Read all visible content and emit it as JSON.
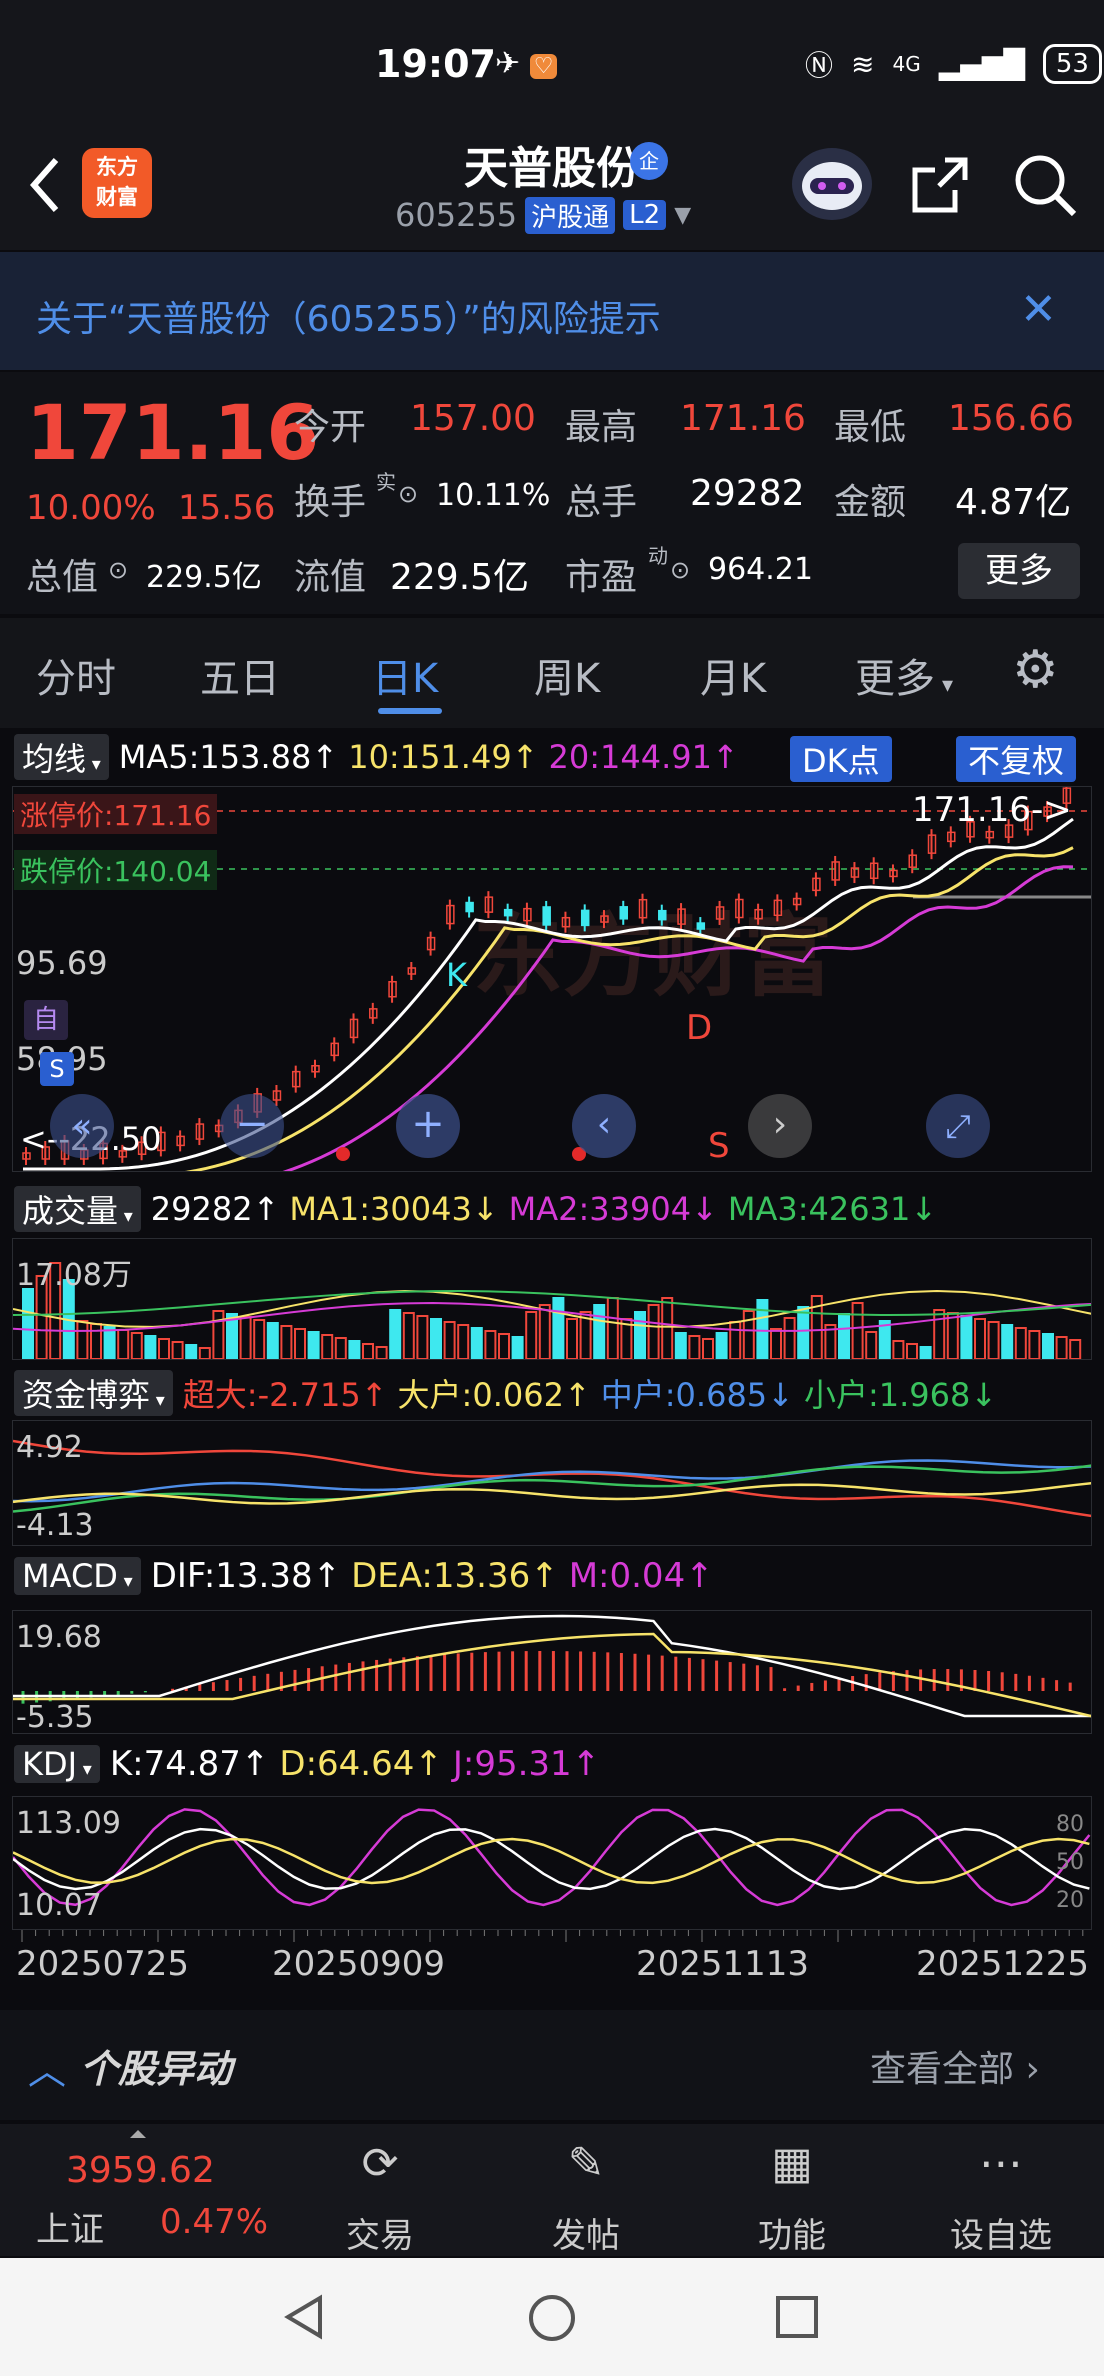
{
  "status_bar": {
    "time": "19:07",
    "battery": "53",
    "network": "4G"
  },
  "header": {
    "logo_line1": "东方",
    "logo_line2": "财富",
    "stock_name": "天普股份",
    "qiye_badge": "企",
    "stock_code": "605255",
    "tag_hgt": "沪股通",
    "tag_l2": "L2"
  },
  "risk_banner": {
    "text": "关于“天普股份（605255）”的风险提示"
  },
  "quote": {
    "price": "171.16",
    "change_pct": "10.00%",
    "change_amt": "15.56",
    "open_label": "今开",
    "open": "157.00",
    "high_label": "最高",
    "high": "171.16",
    "low_label": "最低",
    "low": "156.66",
    "turnover_label": "换手",
    "turnover_sup": "实",
    "turnover": "10.11%",
    "volume_label": "总手",
    "volume": "29282",
    "amount_label": "金额",
    "amount": "4.87亿",
    "mcap_label": "总值",
    "mcap": "229.5亿",
    "float_label": "流值",
    "float": "229.5亿",
    "pe_label": "市盈",
    "pe_sup": "动",
    "pe": "964.21",
    "more": "更多"
  },
  "tabs": [
    "分时",
    "五日",
    "日K",
    "周K",
    "月K",
    "更多"
  ],
  "active_tab": 2,
  "kline": {
    "ma_selector": "均线",
    "ma5": "MA5:153.88↑",
    "ma10": "10:151.49↑",
    "ma20": "20:144.91↑",
    "dk_btn": "DK点",
    "fq_btn": "不复权",
    "limit_up": "涨停价:171.16",
    "limit_down": "跌停价:140.04",
    "axis_top": "171.16",
    "axis_mid": "95.69",
    "axis_low": "58.95",
    "price_arrow": "171.16->",
    "low_mark": "<--22.50",
    "marker_k": "K",
    "marker_d": "D",
    "marker_s": "S",
    "marker_zi": "自",
    "marker_s_tag": "S"
  },
  "volume": {
    "selector": "成交量",
    "value": "29282↑",
    "ma1": "MA1:30043↓",
    "ma2": "MA2:33904↓",
    "ma3": "MA3:42631↓",
    "axis_top": "17.08万"
  },
  "funds": {
    "selector": "资金博弈",
    "super": "超大:-2.715↑",
    "large": "大户:0.062↑",
    "mid": "中户:0.685↓",
    "small": "小户:1.968↓",
    "axis_top": "4.92",
    "axis_low": "-4.13"
  },
  "macd": {
    "selector": "MACD",
    "dif": "DIF:13.38↑",
    "dea": "DEA:13.36↑",
    "m": "M:0.04↑",
    "axis_top": "19.68",
    "axis_low": "-5.35"
  },
  "kdj": {
    "selector": "KDJ",
    "k": "K:74.87↑",
    "d": "D:64.64↑",
    "j": "J:95.31↑",
    "axis_top": "113.09",
    "axis_low": "10.07",
    "r80": "80",
    "r50": "50",
    "r20": "20"
  },
  "dates": [
    "20250725",
    "20250909",
    "20251113",
    "20251225"
  ],
  "yidong": {
    "title": "个股异动",
    "view_all": "查看全部"
  },
  "bottom_nav": {
    "index_value": "3959.62",
    "index_name": "上证",
    "index_pct": "0.47%",
    "items": [
      "交易",
      "发帖",
      "功能",
      "设自选"
    ]
  },
  "colors": {
    "up": "#f0473b",
    "down": "#3ee8ef",
    "accent": "#4f8ee8",
    "ma5": "#ffffff",
    "ma10": "#f7e36a",
    "ma20": "#d63bd6"
  }
}
